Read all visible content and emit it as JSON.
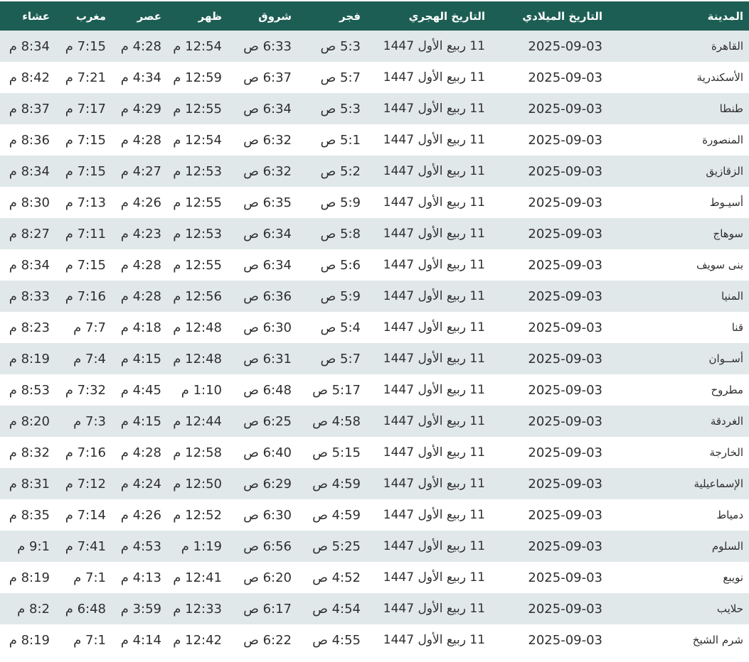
{
  "colors": {
    "header_bg": "#1d5e54",
    "row_alt_bg": "#e1e8ea"
  },
  "headers": {
    "city": "المدينة",
    "gregorian": "التاريخ الميلادي",
    "hijri": "التاريخ الهجري",
    "fajr": "فجر",
    "shuruq": "شروق",
    "dhuhr": "ظهر",
    "asr": "عصر",
    "maghrib": "مغرب",
    "isha": "عشاء"
  },
  "rows": [
    {
      "city": "القاهرة",
      "gregorian": "2025-09-03",
      "hijri": "11 ربيع الأول 1447",
      "fajr": "5:3 ص",
      "shuruq": "6:33 ص",
      "dhuhr": "12:54 م",
      "asr": "4:28 م",
      "maghrib": "7:15 م",
      "isha": "8:34 م"
    },
    {
      "city": "الأسكندرية",
      "gregorian": "2025-09-03",
      "hijri": "11 ربيع الأول 1447",
      "fajr": "5:7 ص",
      "shuruq": "6:37 ص",
      "dhuhr": "12:59 م",
      "asr": "4:34 م",
      "maghrib": "7:21 م",
      "isha": "8:42 م"
    },
    {
      "city": "طنطا",
      "gregorian": "2025-09-03",
      "hijri": "11 ربيع الأول 1447",
      "fajr": "5:3 ص",
      "shuruq": "6:34 ص",
      "dhuhr": "12:55 م",
      "asr": "4:29 م",
      "maghrib": "7:17 م",
      "isha": "8:37 م"
    },
    {
      "city": "المنصورة",
      "gregorian": "2025-09-03",
      "hijri": "11 ربيع الأول 1447",
      "fajr": "5:1 ص",
      "shuruq": "6:32 ص",
      "dhuhr": "12:54 م",
      "asr": "4:28 م",
      "maghrib": "7:15 م",
      "isha": "8:36 م"
    },
    {
      "city": "الزقازيق",
      "gregorian": "2025-09-03",
      "hijri": "11 ربيع الأول 1447",
      "fajr": "5:2 ص",
      "shuruq": "6:32 ص",
      "dhuhr": "12:53 م",
      "asr": "4:27 م",
      "maghrib": "7:15 م",
      "isha": "8:34 م"
    },
    {
      "city": "أسيـوط",
      "gregorian": "2025-09-03",
      "hijri": "11 ربيع الأول 1447",
      "fajr": "5:9 ص",
      "shuruq": "6:35 ص",
      "dhuhr": "12:55 م",
      "asr": "4:26 م",
      "maghrib": "7:13 م",
      "isha": "8:30 م"
    },
    {
      "city": "سوهاج",
      "gregorian": "2025-09-03",
      "hijri": "11 ربيع الأول 1447",
      "fajr": "5:8 ص",
      "shuruq": "6:34 ص",
      "dhuhr": "12:53 م",
      "asr": "4:23 م",
      "maghrib": "7:11 م",
      "isha": "8:27 م"
    },
    {
      "city": "بنى سويف",
      "gregorian": "2025-09-03",
      "hijri": "11 ربيع الأول 1447",
      "fajr": "5:6 ص",
      "shuruq": "6:34 ص",
      "dhuhr": "12:55 م",
      "asr": "4:28 م",
      "maghrib": "7:15 م",
      "isha": "8:34 م"
    },
    {
      "city": "المنيا",
      "gregorian": "2025-09-03",
      "hijri": "11 ربيع الأول 1447",
      "fajr": "5:9 ص",
      "shuruq": "6:36 ص",
      "dhuhr": "12:56 م",
      "asr": "4:28 م",
      "maghrib": "7:16 م",
      "isha": "8:33 م"
    },
    {
      "city": "قنا",
      "gregorian": "2025-09-03",
      "hijri": "11 ربيع الأول 1447",
      "fajr": "5:4 ص",
      "shuruq": "6:30 ص",
      "dhuhr": "12:48 م",
      "asr": "4:18 م",
      "maghrib": "7:7 م",
      "isha": "8:23 م"
    },
    {
      "city": "أســوان",
      "gregorian": "2025-09-03",
      "hijri": "11 ربيع الأول 1447",
      "fajr": "5:7 ص",
      "shuruq": "6:31 ص",
      "dhuhr": "12:48 م",
      "asr": "4:15 م",
      "maghrib": "7:4 م",
      "isha": "8:19 م"
    },
    {
      "city": "مطروح",
      "gregorian": "2025-09-03",
      "hijri": "11 ربيع الأول 1447",
      "fajr": "5:17 ص",
      "shuruq": "6:48 ص",
      "dhuhr": "1:10 م",
      "asr": "4:45 م",
      "maghrib": "7:32 م",
      "isha": "8:53 م"
    },
    {
      "city": "الغردقة",
      "gregorian": "2025-09-03",
      "hijri": "11 ربيع الأول 1447",
      "fajr": "4:58 ص",
      "shuruq": "6:25 ص",
      "dhuhr": "12:44 م",
      "asr": "4:15 م",
      "maghrib": "7:3 م",
      "isha": "8:20 م"
    },
    {
      "city": "الخارجة",
      "gregorian": "2025-09-03",
      "hijri": "11 ربيع الأول 1447",
      "fajr": "5:15 ص",
      "shuruq": "6:40 ص",
      "dhuhr": "12:58 م",
      "asr": "4:28 م",
      "maghrib": "7:16 م",
      "isha": "8:32 م"
    },
    {
      "city": "الإسماعيلية",
      "gregorian": "2025-09-03",
      "hijri": "11 ربيع الأول 1447",
      "fajr": "4:59 ص",
      "shuruq": "6:29 ص",
      "dhuhr": "12:50 م",
      "asr": "4:24 م",
      "maghrib": "7:12 م",
      "isha": "8:31 م"
    },
    {
      "city": "دمياط",
      "gregorian": "2025-09-03",
      "hijri": "11 ربيع الأول 1447",
      "fajr": "4:59 ص",
      "shuruq": "6:30 ص",
      "dhuhr": "12:52 م",
      "asr": "4:26 م",
      "maghrib": "7:14 م",
      "isha": "8:35 م"
    },
    {
      "city": "السلوم",
      "gregorian": "2025-09-03",
      "hijri": "11 ربيع الأول 1447",
      "fajr": "5:25 ص",
      "shuruq": "6:56 ص",
      "dhuhr": "1:19 م",
      "asr": "4:53 م",
      "maghrib": "7:41 م",
      "isha": "9:1 م"
    },
    {
      "city": "نويبع",
      "gregorian": "2025-09-03",
      "hijri": "11 ربيع الأول 1447",
      "fajr": "4:52 ص",
      "shuruq": "6:20 ص",
      "dhuhr": "12:41 م",
      "asr": "4:13 م",
      "maghrib": "7:1 م",
      "isha": "8:19 م"
    },
    {
      "city": "حلايب",
      "gregorian": "2025-09-03",
      "hijri": "11 ربيع الأول 1447",
      "fajr": "4:54 ص",
      "shuruq": "6:17 ص",
      "dhuhr": "12:33 م",
      "asr": "3:59 م",
      "maghrib": "6:48 م",
      "isha": "8:2 م"
    },
    {
      "city": "شرم الشيخ",
      "gregorian": "2025-09-03",
      "hijri": "11 ربيع الأول 1447",
      "fajr": "4:55 ص",
      "shuruq": "6:22 ص",
      "dhuhr": "12:42 م",
      "asr": "4:14 م",
      "maghrib": "7:1 م",
      "isha": "8:19 م"
    }
  ]
}
